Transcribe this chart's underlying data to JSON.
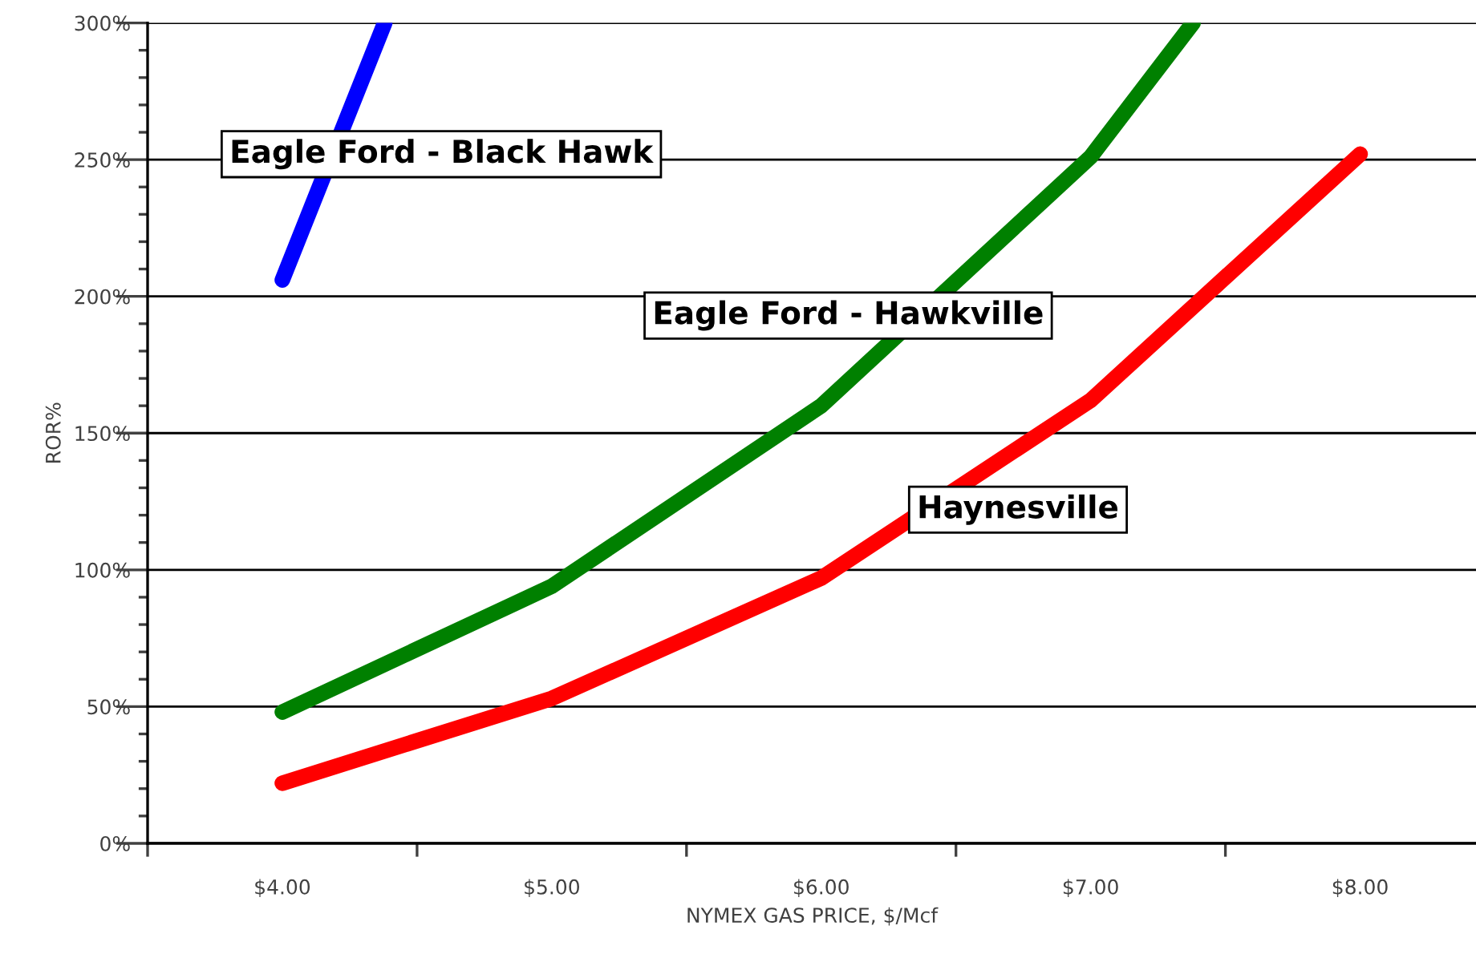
{
  "chart_data": {
    "type": "line",
    "xlabel": "NYMEX GAS PRICE, $/Mcf",
    "ylabel": "ROR%",
    "xlim": [
      3.5,
      8.43
    ],
    "ylim": [
      0,
      300
    ],
    "xticks": [
      {
        "value": 4,
        "label": "$4.00"
      },
      {
        "value": 5,
        "label": "$5.00"
      },
      {
        "value": 6,
        "label": "$6.00"
      },
      {
        "value": 7,
        "label": "$7.00"
      },
      {
        "value": 8,
        "label": "$8.00"
      },
      {
        "value": 3.5,
        "label": null
      },
      {
        "value": 4.5,
        "label": null
      },
      {
        "value": 5.5,
        "label": null
      },
      {
        "value": 6.5,
        "label": null
      },
      {
        "value": 7.5,
        "label": null
      }
    ],
    "yticks": [
      {
        "value": 0,
        "label": "0%"
      },
      {
        "value": 50,
        "label": "50%"
      },
      {
        "value": 100,
        "label": "100%"
      },
      {
        "value": 150,
        "label": "150%"
      },
      {
        "value": 200,
        "label": "200%"
      },
      {
        "value": 250,
        "label": "250%"
      },
      {
        "value": 300,
        "label": "300%"
      },
      {
        "value": 10,
        "label": null
      },
      {
        "value": 20,
        "label": null
      },
      {
        "value": 30,
        "label": null
      },
      {
        "value": 40,
        "label": null
      },
      {
        "value": 60,
        "label": null
      },
      {
        "value": 70,
        "label": null
      },
      {
        "value": 80,
        "label": null
      },
      {
        "value": 90,
        "label": null
      },
      {
        "value": 110,
        "label": null
      },
      {
        "value": 120,
        "label": null
      },
      {
        "value": 130,
        "label": null
      },
      {
        "value": 140,
        "label": null
      },
      {
        "value": 160,
        "label": null
      },
      {
        "value": 170,
        "label": null
      },
      {
        "value": 180,
        "label": null
      },
      {
        "value": 190,
        "label": null
      },
      {
        "value": 210,
        "label": null
      },
      {
        "value": 220,
        "label": null
      },
      {
        "value": 230,
        "label": null
      },
      {
        "value": 240,
        "label": null
      },
      {
        "value": 260,
        "label": null
      },
      {
        "value": 270,
        "label": null
      },
      {
        "value": 280,
        "label": null
      },
      {
        "value": 290,
        "label": null
      }
    ],
    "grid": "y",
    "legend": false,
    "marker": "none",
    "line_style": "solid",
    "series": [
      {
        "name": "Eagle Ford - Black Hawk",
        "color": "#0000ff",
        "x": [
          4,
          4.38
        ],
        "values": [
          206,
          300
        ]
      },
      {
        "name": "Eagle Ford - Hawkville",
        "color": "#008000",
        "x": [
          4,
          5,
          6,
          7,
          7.38
        ],
        "values": [
          48,
          94,
          160,
          251,
          300
        ]
      },
      {
        "name": "Haynesville",
        "color": "#ff0000",
        "x": [
          4,
          5,
          6,
          7,
          8
        ],
        "values": [
          22,
          53,
          97,
          162,
          252
        ]
      }
    ]
  }
}
